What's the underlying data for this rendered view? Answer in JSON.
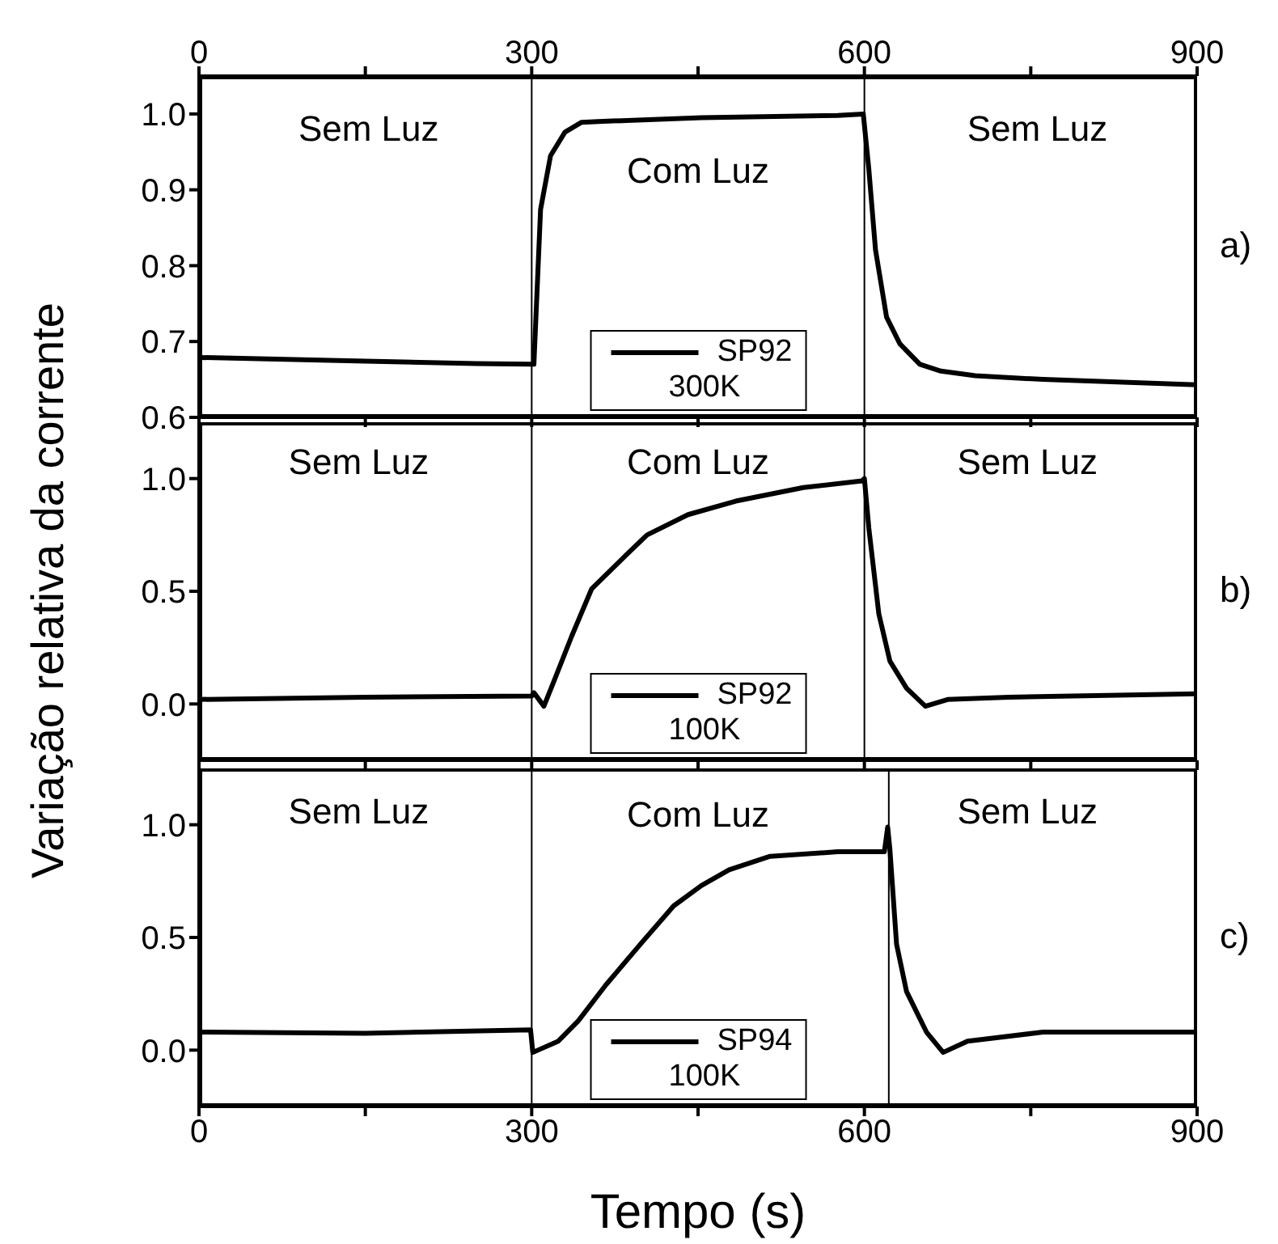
{
  "chart_data": [
    {
      "type": "line",
      "xlim": [
        0,
        900
      ],
      "x2lim": [
        0,
        900
      ],
      "ylim": [
        0.6,
        1.05
      ],
      "xticks": [
        0,
        {
          "value": 150,
          "label": null
        },
        300,
        {
          "value": 450,
          "label": null
        },
        600,
        {
          "value": 750,
          "label": null
        },
        900
      ],
      "x2ticks": [
        0,
        {
          "value": 150,
          "label": null
        },
        300,
        {
          "value": 450,
          "label": null
        },
        600,
        {
          "value": 750,
          "label": null
        },
        900
      ],
      "yticks": [
        {
          "value": 0.6,
          "label": "0.6"
        },
        {
          "value": 0.7,
          "label": "0.7"
        },
        {
          "value": 0.8,
          "label": "0.8"
        },
        {
          "value": 0.9,
          "label": "0.9"
        },
        {
          "value": 1,
          "label": "1.0"
        }
      ],
      "tick_labels": "y",
      "legend": "bottom",
      "legend_title": "300K",
      "grid": false,
      "marker": "none",
      "line_style": "solid",
      "x": [
        0,
        150,
        250,
        299,
        302,
        308,
        317,
        330,
        345,
        360,
        453,
        576,
        599,
        604,
        610,
        620,
        632,
        650,
        669,
        700,
        761,
        900
      ],
      "series": [
        {
          "name": "SP92",
          "color": "#000000",
          "values": [
            0.679,
            0.674,
            0.671,
            0.67,
            0.67,
            0.874,
            0.945,
            0.976,
            0.989,
            0.99,
            0.995,
            0.998,
            1.0,
            0.927,
            0.821,
            0.732,
            0.697,
            0.67,
            0.661,
            0.655,
            0.65,
            0.643
          ]
        }
      ],
      "ref_lines": [
        {
          "axis": "x",
          "value": 300,
          "color": "#000000"
        },
        {
          "axis": "x",
          "value": 600,
          "color": "#000000"
        }
      ],
      "annotations": [
        "Sem Luz",
        "Com Luz",
        "Sem Luz",
        "a)"
      ]
    },
    {
      "type": "line",
      "xlim": [
        0,
        900
      ],
      "ylim": [
        -0.25,
        1.25
      ],
      "xticks": [
        0,
        {
          "value": 150,
          "label": null
        },
        300,
        {
          "value": 450,
          "label": null
        },
        600,
        {
          "value": 750,
          "label": null
        },
        900
      ],
      "yticks": [
        {
          "value": 0,
          "label": "0.0"
        },
        {
          "value": 0.5,
          "label": "0.5"
        },
        {
          "value": 1,
          "label": "1.0"
        }
      ],
      "tick_labels": "y",
      "legend": "bottom",
      "legend_title": "100K",
      "grid": false,
      "marker": "none",
      "line_style": "solid",
      "ylabel": "Variação relativa da corrente",
      "x": [
        0,
        150,
        300,
        302,
        311,
        320,
        336,
        354,
        385,
        404,
        441,
        484,
        545,
        598,
        600,
        604,
        613,
        623,
        638,
        655,
        675,
        730,
        900
      ],
      "series": [
        {
          "name": "SP92",
          "color": "#000000",
          "values": [
            0.02,
            0.03,
            0.035,
            0.05,
            -0.01,
            0.1,
            0.3,
            0.51,
            0.66,
            0.75,
            0.84,
            0.9,
            0.96,
            0.99,
            1.0,
            0.78,
            0.4,
            0.19,
            0.07,
            -0.01,
            0.02,
            0.03,
            0.045
          ]
        }
      ],
      "ref_lines": [
        {
          "axis": "x",
          "value": 300,
          "color": "#000000"
        },
        {
          "axis": "x",
          "value": 600,
          "color": "#000000"
        }
      ],
      "annotations": [
        "Sem Luz",
        "Com Luz",
        "Sem Luz",
        "b)"
      ]
    },
    {
      "type": "line",
      "xlim": [
        0,
        900
      ],
      "ylim": [
        -0.25,
        1.25
      ],
      "xticks": [
        0,
        {
          "value": 150,
          "label": null
        },
        300,
        {
          "value": 450,
          "label": null
        },
        600,
        {
          "value": 750,
          "label": null
        },
        900
      ],
      "yticks": [
        {
          "value": 0,
          "label": "0.0"
        },
        {
          "value": 0.5,
          "label": "0.5"
        },
        {
          "value": 1,
          "label": "1.0"
        }
      ],
      "legend": "bottom",
      "legend_title": "100K",
      "grid": false,
      "marker": "none",
      "line_style": "solid",
      "xlabel": "Tempo (s)",
      "x": [
        0,
        150,
        299,
        301,
        324,
        342,
        367,
        398,
        428,
        453,
        478,
        515,
        576,
        618,
        621,
        623,
        629,
        638,
        656,
        671,
        693,
        761,
        900
      ],
      "series": [
        {
          "name": "SP94",
          "color": "#000000",
          "values": [
            0.08,
            0.075,
            0.09,
            -0.01,
            0.04,
            0.13,
            0.29,
            0.47,
            0.64,
            0.73,
            0.8,
            0.86,
            0.88,
            0.88,
            0.99,
            0.89,
            0.47,
            0.26,
            0.08,
            -0.01,
            0.04,
            0.08,
            0.08
          ]
        }
      ],
      "ref_lines": [
        {
          "axis": "x",
          "value": 300,
          "color": "#000000"
        },
        {
          "axis": "x",
          "value": 622,
          "color": "#000000"
        }
      ],
      "annotations": [
        "Sem Luz",
        "Com Luz",
        "Sem Luz",
        "c)"
      ]
    }
  ]
}
